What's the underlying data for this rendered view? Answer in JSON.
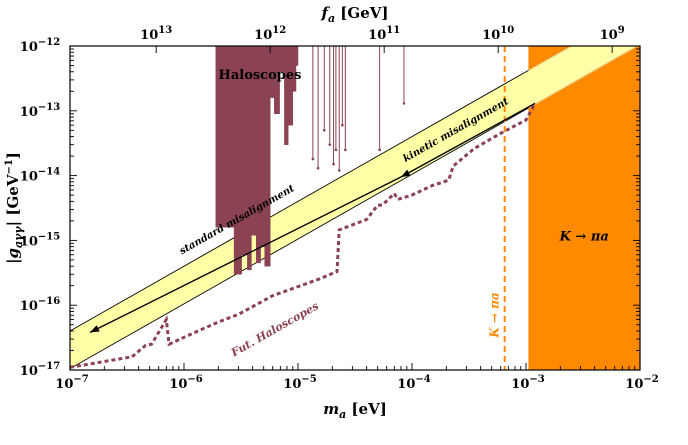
{
  "chart_data": {
    "type": "area",
    "xlabel": "m_a [eV]",
    "ylabel": "|g_aγγ| [GeV⁻¹]",
    "top_axis_label": "f_a [GeV]",
    "x_scale": "log",
    "y_scale": "log",
    "xlim": [
      1e-07,
      0.01
    ],
    "ylim": [
      1e-17,
      1e-12
    ],
    "x_ticks": [
      {
        "value": 1e-07,
        "mant": "10",
        "exp": "−7"
      },
      {
        "value": 1e-06,
        "mant": "10",
        "exp": "−6"
      },
      {
        "value": 1e-05,
        "mant": "10",
        "exp": "−5"
      },
      {
        "value": 0.0001,
        "mant": "10",
        "exp": "−4"
      },
      {
        "value": 0.001,
        "mant": "10",
        "exp": "−3"
      },
      {
        "value": 0.01,
        "mant": "10",
        "exp": "−2"
      }
    ],
    "y_ticks": [
      {
        "value": 1e-17,
        "mant": "10",
        "exp": "−17"
      },
      {
        "value": 1e-16,
        "mant": "10",
        "exp": "−16"
      },
      {
        "value": 1e-15,
        "mant": "10",
        "exp": "−15"
      },
      {
        "value": 1e-14,
        "mant": "10",
        "exp": "−14"
      },
      {
        "value": 1e-13,
        "mant": "10",
        "exp": "−13"
      },
      {
        "value": 1e-12,
        "mant": "10",
        "exp": "−12"
      }
    ],
    "top_ticks": [
      {
        "ma": 5.7e-07,
        "mant": "10",
        "exp": "13"
      },
      {
        "ma": 5.7e-06,
        "mant": "10",
        "exp": "12"
      },
      {
        "ma": 5.7e-05,
        "mant": "10",
        "exp": "11"
      },
      {
        "ma": 0.00057,
        "mant": "10",
        "exp": "10"
      },
      {
        "ma": 0.0057,
        "mant": "10",
        "exp": "9"
      }
    ],
    "qcd_band": {
      "x": [
        1e-07,
        0.01
      ],
      "upper": [
        4e-17,
        4e-12
      ],
      "lower": [
        1.05e-17,
        1.05e-12
      ],
      "center": [
        2.1e-17,
        2.1e-12
      ]
    },
    "haloscopes": {
      "label": "Haloscopes",
      "color": "#8b4252",
      "envelope": [
        [
          1.9e-06,
          1e-12
        ],
        [
          1.9e-06,
          1.6e-15
        ],
        [
          2.75e-06,
          1.6e-15
        ],
        [
          2.75e-06,
          3e-16
        ],
        [
          3.2e-06,
          3e-16
        ],
        [
          3.2e-06,
          6e-16
        ],
        [
          3.6e-06,
          6e-16
        ],
        [
          3.6e-06,
          3.5e-16
        ],
        [
          3.9e-06,
          3.5e-16
        ],
        [
          3.9e-06,
          1.2e-15
        ],
        [
          4.3e-06,
          1.2e-15
        ],
        [
          4.3e-06,
          4.5e-16
        ],
        [
          4.7e-06,
          4.5e-16
        ],
        [
          4.7e-06,
          8e-16
        ],
        [
          5.1e-06,
          8e-16
        ],
        [
          5.1e-06,
          4e-16
        ],
        [
          5.7e-06,
          4e-16
        ],
        [
          5.7e-06,
          1.6e-13
        ],
        [
          6.2e-06,
          1.6e-13
        ],
        [
          6.2e-06,
          9e-14
        ],
        [
          6.9e-06,
          9e-14
        ],
        [
          6.9e-06,
          4e-13
        ],
        [
          7.6e-06,
          4e-13
        ],
        [
          7.6e-06,
          3e-14
        ],
        [
          8.2e-06,
          3e-14
        ],
        [
          8.2e-06,
          6e-14
        ],
        [
          9e-06,
          6e-14
        ],
        [
          9e-06,
          2e-13
        ],
        [
          9.6e-06,
          2e-13
        ],
        [
          9.6e-06,
          5e-13
        ],
        [
          1e-05,
          5e-13
        ],
        [
          1e-05,
          1e-12
        ]
      ],
      "spikes": [
        [
          1.35e-05,
          1.8e-14
        ],
        [
          1.5e-05,
          1.3e-14
        ],
        [
          1.7e-05,
          5e-14
        ],
        [
          1.9e-05,
          3e-14
        ],
        [
          2.05e-05,
          1.5e-14
        ],
        [
          2.15e-05,
          2.5e-14
        ],
        [
          2.3e-05,
          1.2e-14
        ],
        [
          2.45e-05,
          6e-14
        ],
        [
          2.6e-05,
          2.5e-14
        ],
        [
          5.2e-05,
          2.5e-14
        ],
        [
          8.5e-05,
          1.3e-13
        ]
      ]
    },
    "future_haloscopes": {
      "label": "Fut. Haloscopes",
      "color": "#8b4252",
      "x": [
        1e-07,
        3.5e-07,
        4.6e-07,
        5.2e-07,
        7e-07,
        7.4e-07,
        1e-06,
        2e-06,
        3e-06,
        6e-06,
        1.5e-05,
        2.2e-05,
        2.3e-05,
        4e-05,
        5e-05,
        5.5e-05,
        7e-05,
        7.5e-05,
        0.0001,
        0.00015,
        0.00021,
        0.00023,
        0.00035,
        0.0006,
        0.001,
        0.0012
      ],
      "y": [
        1.1e-17,
        1.6e-17,
        2.4e-17,
        2.5e-17,
        6e-17,
        2.5e-17,
        3.2e-17,
        5.5e-17,
        7.2e-17,
        1.4e-16,
        2.5e-16,
        3.3e-16,
        1.45e-15,
        2.1e-15,
        3.5e-15,
        3.5e-15,
        5.3e-15,
        4.3e-15,
        5e-15,
        7e-15,
        8.5e-15,
        1.4e-14,
        2.6e-14,
        4.5e-14,
        7.2e-14,
        1.3e-13
      ]
    },
    "k_pi_a_future": {
      "label": "K → πa",
      "x": 0.00065,
      "color": "#ff8a00"
    },
    "k_pi_a_excluded": {
      "label": "K → πa",
      "xmin": 0.00105,
      "xmax": 0.01,
      "color": "#ff8a00"
    },
    "annotations": {
      "standard": "standard misalignment",
      "kinetic": "kinetic misalignment"
    },
    "arrows": {
      "standard": {
        "from": [
          8e-05,
          9.5e-15
        ],
        "to": [
          1.5e-07,
          3.8e-17
        ]
      },
      "kinetic": {
        "from": [
          0.0012,
          1.3e-13
        ],
        "to": [
          8e-05,
          9.5e-15
        ]
      }
    },
    "band_color": "#ffffa8",
    "grid": false,
    "legend": "none"
  }
}
